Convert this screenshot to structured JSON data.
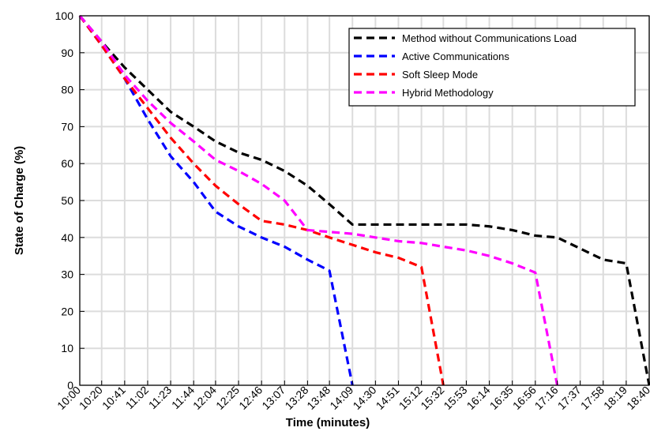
{
  "chart_data": {
    "type": "line",
    "xlabel": "Time (minutes)",
    "ylabel": "State of Charge (%)",
    "ylim": [
      0,
      100
    ],
    "yticks": [
      0,
      10,
      20,
      30,
      40,
      50,
      60,
      70,
      80,
      90,
      100
    ],
    "xlim": [
      "10:00",
      "18:40"
    ],
    "x_tick_labels": [
      "10:00",
      "10:20",
      "10:41",
      "11:02",
      "11:23",
      "11:44",
      "12:04",
      "12:25",
      "12:46",
      "13:07",
      "13:28",
      "13:48",
      "14:09",
      "14:30",
      "14:51",
      "15:12",
      "15:32",
      "15:53",
      "16:14",
      "16:35",
      "16:56",
      "17:16",
      "17:37",
      "17:58",
      "18:19",
      "18:40"
    ],
    "grid": true,
    "legend_position": "top-right",
    "series": [
      {
        "name": "Method without Communications Load",
        "color": "#000000",
        "points": [
          [
            "10:00",
            100
          ],
          [
            "10:20",
            93
          ],
          [
            "10:41",
            86
          ],
          [
            "11:02",
            80
          ],
          [
            "11:23",
            74
          ],
          [
            "11:44",
            70
          ],
          [
            "12:04",
            66
          ],
          [
            "12:25",
            63
          ],
          [
            "12:46",
            61
          ],
          [
            "13:07",
            58
          ],
          [
            "13:28",
            54
          ],
          [
            "13:48",
            49
          ],
          [
            "14:09",
            43.5
          ],
          [
            "14:30",
            43.5
          ],
          [
            "14:51",
            43.5
          ],
          [
            "15:12",
            43.5
          ],
          [
            "15:32",
            43.5
          ],
          [
            "15:53",
            43.5
          ],
          [
            "16:14",
            43
          ],
          [
            "16:35",
            42
          ],
          [
            "16:56",
            40.5
          ],
          [
            "17:16",
            40
          ],
          [
            "17:37",
            37
          ],
          [
            "17:58",
            34
          ],
          [
            "18:19",
            33
          ],
          [
            "18:40",
            0
          ]
        ]
      },
      {
        "name": "Active Communications",
        "color": "#0000ff",
        "points": [
          [
            "10:00",
            100
          ],
          [
            "10:20",
            92
          ],
          [
            "10:41",
            83
          ],
          [
            "11:02",
            72
          ],
          [
            "11:23",
            62
          ],
          [
            "11:44",
            55
          ],
          [
            "12:04",
            47
          ],
          [
            "12:25",
            43
          ],
          [
            "12:46",
            40
          ],
          [
            "13:07",
            37.5
          ],
          [
            "13:28",
            34
          ],
          [
            "13:48",
            31
          ],
          [
            "14:09",
            0
          ]
        ]
      },
      {
        "name": "Soft Sleep Mode",
        "color": "#ff0000",
        "points": [
          [
            "10:00",
            100
          ],
          [
            "10:20",
            92
          ],
          [
            "10:41",
            83
          ],
          [
            "11:02",
            75
          ],
          [
            "11:23",
            67
          ],
          [
            "11:44",
            60
          ],
          [
            "12:04",
            54
          ],
          [
            "12:25",
            49
          ],
          [
            "12:46",
            44.5
          ],
          [
            "13:07",
            43.5
          ],
          [
            "13:28",
            42
          ],
          [
            "13:48",
            40
          ],
          [
            "14:09",
            38
          ],
          [
            "14:30",
            36
          ],
          [
            "14:51",
            34.5
          ],
          [
            "15:12",
            32
          ],
          [
            "15:32",
            0
          ]
        ]
      },
      {
        "name": "Hybrid Methodology",
        "color": "#ff00ff",
        "points": [
          [
            "10:00",
            100
          ],
          [
            "10:20",
            93
          ],
          [
            "10:41",
            84
          ],
          [
            "11:02",
            77
          ],
          [
            "11:23",
            71
          ],
          [
            "11:44",
            66
          ],
          [
            "12:04",
            61
          ],
          [
            "12:25",
            58
          ],
          [
            "12:46",
            54.5
          ],
          [
            "13:07",
            50
          ],
          [
            "13:28",
            42
          ],
          [
            "13:48",
            41.5
          ],
          [
            "14:09",
            41
          ],
          [
            "14:30",
            40
          ],
          [
            "14:51",
            39
          ],
          [
            "15:12",
            38.5
          ],
          [
            "15:32",
            37.5
          ],
          [
            "15:53",
            36.5
          ],
          [
            "16:14",
            35
          ],
          [
            "16:35",
            33
          ],
          [
            "16:56",
            30.5
          ],
          [
            "17:16",
            0
          ]
        ]
      }
    ]
  }
}
